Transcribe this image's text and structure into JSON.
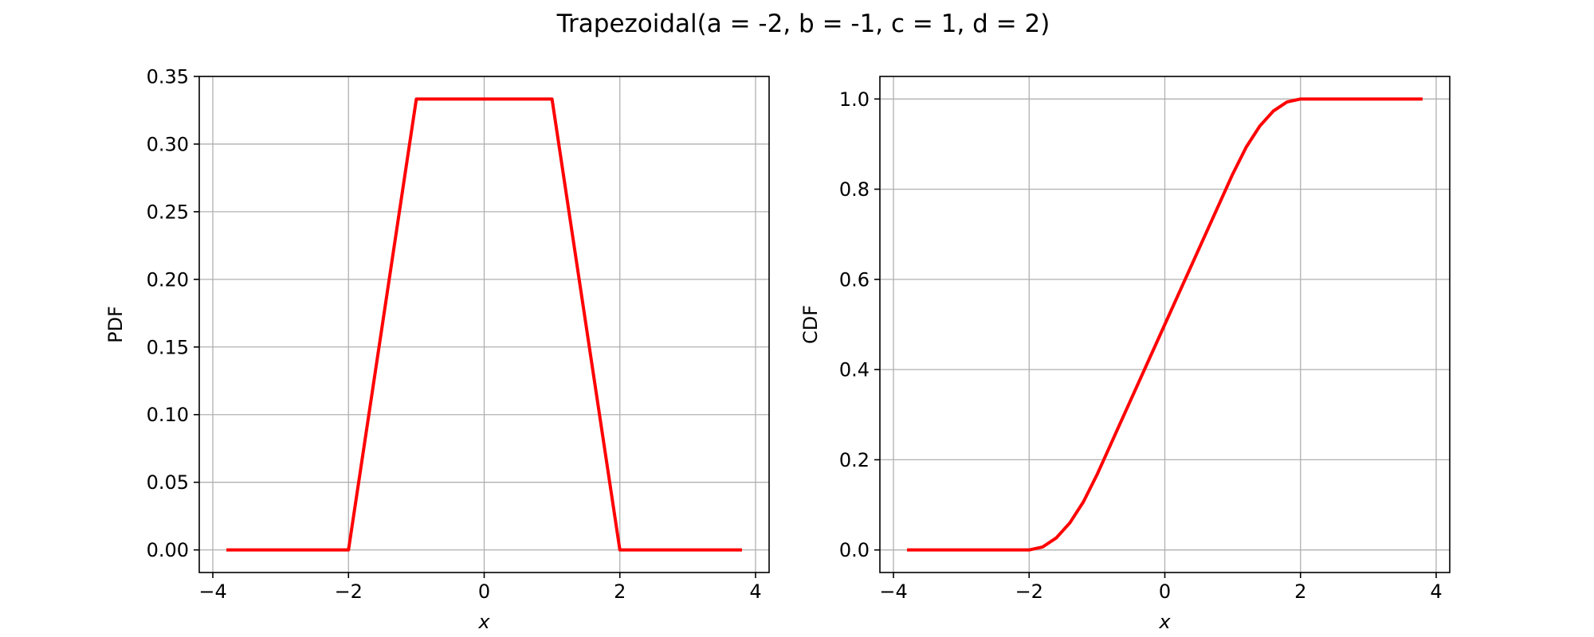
{
  "figure": {
    "suptitle": "Trapezoidal(a = -2, b = -1, c = 1, d = 2)"
  },
  "colors": {
    "series": "#ff0000",
    "grid": "#b0b0b0",
    "axes": "#000000"
  },
  "chart_data": [
    {
      "type": "line",
      "title": "",
      "xlabel": "x",
      "ylabel": "PDF",
      "xlim": [
        -4.2,
        4.2
      ],
      "ylim": [
        -0.0167,
        0.35
      ],
      "xticks": [
        -4,
        -2,
        0,
        2,
        4
      ],
      "xtick_labels": [
        "−4",
        "−2",
        "0",
        "2",
        "4"
      ],
      "yticks": [
        0.0,
        0.05,
        0.1,
        0.15,
        0.2,
        0.25,
        0.3,
        0.35
      ],
      "ytick_labels": [
        "0.00",
        "0.05",
        "0.10",
        "0.15",
        "0.20",
        "0.25",
        "0.30",
        "0.35"
      ],
      "grid": true,
      "series": [
        {
          "color": "#ff0000",
          "x": [
            -3.8,
            -2.0,
            -1.0,
            -0.9,
            0.9,
            1.0,
            2.0,
            3.8
          ],
          "y": [
            0.0,
            0.0,
            0.3333,
            0.3333,
            0.3333,
            0.3333,
            0.0,
            0.0
          ]
        }
      ]
    },
    {
      "type": "line",
      "title": "",
      "xlabel": "x",
      "ylabel": "CDF",
      "xlim": [
        -4.2,
        4.2
      ],
      "ylim": [
        -0.05,
        1.05
      ],
      "xticks": [
        -4,
        -2,
        0,
        2,
        4
      ],
      "xtick_labels": [
        "−4",
        "−2",
        "0",
        "2",
        "4"
      ],
      "yticks": [
        0.0,
        0.2,
        0.4,
        0.6,
        0.8,
        1.0
      ],
      "ytick_labels": [
        "0.0",
        "0.2",
        "0.4",
        "0.6",
        "0.8",
        "1.0"
      ],
      "grid": true,
      "series": [
        {
          "color": "#ff0000",
          "x": [
            -3.8,
            -2.0,
            -1.8,
            -1.6,
            -1.4,
            -1.2,
            -1.0,
            0.0,
            1.0,
            1.2,
            1.4,
            1.6,
            1.8,
            2.0,
            3.8
          ],
          "y": [
            0.0,
            0.0,
            0.0067,
            0.0267,
            0.06,
            0.1067,
            0.1667,
            0.5,
            0.8333,
            0.8933,
            0.94,
            0.9733,
            0.9933,
            1.0,
            1.0
          ]
        }
      ]
    }
  ]
}
